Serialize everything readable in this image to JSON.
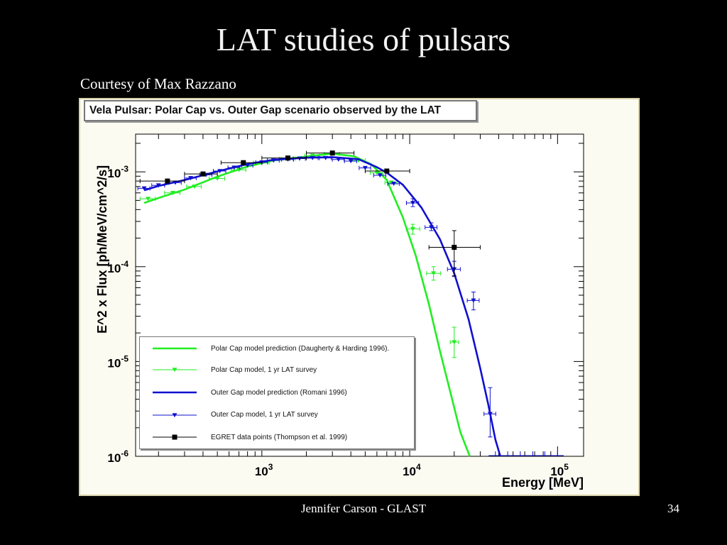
{
  "slide": {
    "title": "LAT studies of pulsars",
    "courtesy": "Courtesy of Max Razzano",
    "footer_author": "Jennifer Carson - GLAST",
    "page_number": "34"
  },
  "chart_data": {
    "type": "line",
    "title": "Vela Pulsar: Polar Cap vs. Outer Gap scenario observed by the LAT",
    "xlabel": "Energy [MeV]",
    "ylabel": "E^2 x Flux [ph/MeV/cm^2/s]",
    "x_scale": "log",
    "y_scale": "log",
    "xlim": [
      140,
      150000
    ],
    "ylim": [
      1e-06,
      0.0025
    ],
    "x_ticks": [
      {
        "value": 1000,
        "base": "10",
        "exp": "3"
      },
      {
        "value": 10000,
        "base": "10",
        "exp": "4"
      },
      {
        "value": 100000,
        "base": "10",
        "exp": "5"
      }
    ],
    "y_ticks": [
      {
        "value": 0.001,
        "base": "10",
        "exp": "-3"
      },
      {
        "value": 0.0001,
        "base": "10",
        "exp": "-4"
      },
      {
        "value": 1e-05,
        "base": "10",
        "exp": "-5"
      },
      {
        "value": 1e-06,
        "base": "10",
        "exp": "-6"
      }
    ],
    "legend_position": "bottom-left",
    "series": [
      {
        "name": "Polar Cap model prediction (Daugherty & Harding 1996).",
        "kind": "line",
        "color": "#22ee22",
        "x": [
          160,
          200,
          300,
          500,
          800,
          1200,
          2000,
          3000,
          4200,
          5500,
          7000,
          9000,
          11000,
          13500,
          16000,
          19000,
          22000,
          25500
        ],
        "y": [
          0.00047,
          0.00053,
          0.00065,
          0.00089,
          0.00114,
          0.00132,
          0.00145,
          0.00156,
          0.00146,
          0.0012,
          0.00082,
          0.00033,
          0.00013,
          4e-05,
          1.3e-05,
          4.5e-06,
          1.8e-06,
          1e-06
        ]
      },
      {
        "name": "Polar Cap model, 1 yr LAT survey",
        "kind": "points",
        "marker": "triangle-down",
        "color": "#22ee22",
        "x": [
          170,
          250,
          350,
          500,
          700,
          1000,
          1500,
          2200,
          3000,
          4500,
          6000,
          7500,
          10500,
          14500,
          20000
        ],
        "y": [
          0.00052,
          0.0006,
          0.0007,
          0.00085,
          0.00105,
          0.00125,
          0.00138,
          0.00148,
          0.00155,
          0.00132,
          0.00098,
          0.00077,
          0.00025,
          8.5e-05,
          1.6e-05
        ],
        "xerr_lo": [
          20,
          30,
          40,
          60,
          80,
          120,
          180,
          250,
          350,
          500,
          600,
          700,
          1000,
          1500,
          1200
        ],
        "xerr_hi": [
          20,
          30,
          40,
          60,
          80,
          120,
          180,
          250,
          350,
          500,
          600,
          700,
          1200,
          1700,
          1400
        ],
        "yerr_lo": [
          0,
          0,
          0,
          0,
          0,
          0,
          0,
          0,
          0,
          0,
          0,
          0,
          3e-05,
          1.3e-05,
          5e-06
        ],
        "yerr_hi": [
          0,
          0,
          0,
          0,
          0,
          0,
          0,
          0,
          0,
          0,
          0,
          0,
          3e-05,
          1.5e-05,
          7e-06
        ]
      },
      {
        "name": "Outer Gap model prediction (Romani 1996)",
        "kind": "line",
        "color": "#1010d0",
        "x": [
          160,
          200,
          300,
          500,
          800,
          1200,
          2000,
          3000,
          4500,
          6000,
          7000,
          9000,
          12000,
          16000,
          20000,
          25000,
          30000,
          34000,
          38000,
          41000
        ],
        "y": [
          0.00064,
          0.00071,
          0.00082,
          0.00101,
          0.00121,
          0.00134,
          0.00141,
          0.00143,
          0.00136,
          0.00112,
          0.00098,
          0.00073,
          0.00042,
          0.000195,
          8.5e-05,
          2.8e-05,
          8.5e-06,
          3.5e-06,
          1.5e-06,
          1e-06
        ]
      },
      {
        "name": "Outer Cap model, 1 yr LAT survey",
        "kind": "points",
        "marker": "triangle-down",
        "color": "#1010d0",
        "x": [
          160,
          200,
          260,
          330,
          420,
          520,
          650,
          800,
          1000,
          1200,
          1500,
          1800,
          2200,
          2700,
          3300,
          4000,
          5000,
          6300,
          7800,
          10500,
          14000,
          20000,
          27000,
          35000
        ],
        "y": [
          0.00067,
          0.00072,
          0.00077,
          0.00086,
          0.00093,
          0.00102,
          0.00111,
          0.00117,
          0.00126,
          0.00132,
          0.00135,
          0.00138,
          0.0014,
          0.0014,
          0.00135,
          0.0013,
          0.0011,
          0.00092,
          0.00075,
          0.00047,
          0.00026,
          9.4e-05,
          4.4e-05,
          2.8e-06
        ],
        "xerr_lo": [
          15,
          20,
          25,
          30,
          40,
          50,
          60,
          70,
          90,
          110,
          140,
          170,
          200,
          250,
          300,
          380,
          450,
          600,
          700,
          1000,
          1300,
          2000,
          2500,
          3200
        ],
        "xerr_hi": [
          15,
          20,
          25,
          30,
          40,
          50,
          60,
          70,
          90,
          110,
          140,
          170,
          200,
          250,
          300,
          380,
          450,
          600,
          700,
          1000,
          1300,
          2000,
          2500,
          3200
        ],
        "yerr_lo": [
          0,
          0,
          0,
          0,
          0,
          0,
          0,
          0,
          0,
          0,
          0,
          0,
          0,
          0,
          0,
          0,
          0,
          0,
          0,
          4e-05,
          2e-05,
          1.5e-05,
          9e-06,
          1.2e-06
        ],
        "yerr_hi": [
          0,
          0,
          0,
          0,
          0,
          0,
          0,
          0,
          0,
          0,
          0,
          0,
          0,
          0,
          0,
          0,
          0,
          0,
          0,
          5e-05,
          3e-05,
          2e-05,
          1e-05,
          2.5e-06
        ]
      },
      {
        "name": "EGRET data points (Thompson et al. 1999)",
        "kind": "points",
        "marker": "square",
        "color": "#000000",
        "x": [
          230,
          400,
          750,
          1500,
          3000,
          7000,
          20000
        ],
        "y": [
          0.0008,
          0.00095,
          0.00125,
          0.0014,
          0.00158,
          0.00102,
          0.00016
        ],
        "xerr_lo": [
          80,
          100,
          220,
          500,
          1000,
          2000,
          6500
        ],
        "xerr_hi": [
          70,
          100,
          250,
          500,
          1200,
          3000,
          10000
        ],
        "yerr_lo": [
          0,
          0,
          0,
          0,
          0,
          0,
          8e-05
        ],
        "yerr_hi": [
          0,
          0,
          0,
          0,
          0,
          0,
          8e-05
        ]
      }
    ]
  }
}
